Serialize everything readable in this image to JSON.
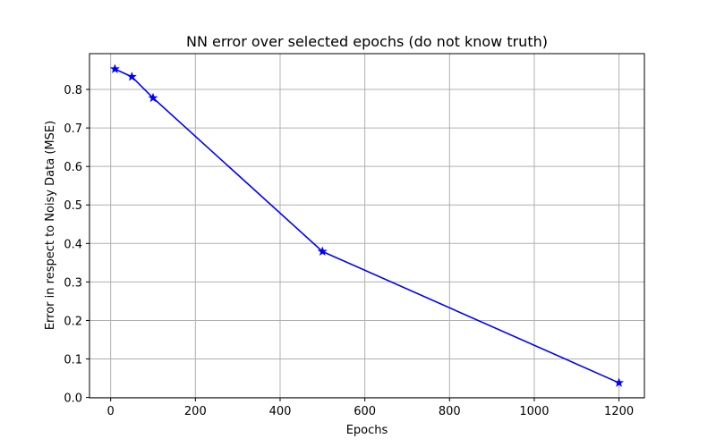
{
  "chart_data": {
    "type": "line",
    "title": "NN error over selected epochs (do not know truth)",
    "xlabel": "Epochs",
    "ylabel": "Error in respect to Noisy Data (MSE)",
    "x": [
      10,
      50,
      100,
      500,
      1200
    ],
    "series": [
      {
        "values": [
          0.853,
          0.833,
          0.778,
          0.379,
          0.038
        ],
        "color": "#0000ff",
        "marker": "star"
      }
    ],
    "xlim": [
      -50,
      1260
    ],
    "ylim": [
      -0.001,
      0.893
    ],
    "xticks": [
      0,
      200,
      400,
      600,
      800,
      1000,
      1200
    ],
    "yticks": [
      0.0,
      0.1,
      0.2,
      0.3,
      0.4,
      0.5,
      0.6,
      0.7,
      0.8
    ],
    "ytick_labels": [
      "0.0",
      "0.1",
      "0.2",
      "0.3",
      "0.4",
      "0.5",
      "0.6",
      "0.7",
      "0.8"
    ],
    "grid": true,
    "grid_color": "#b0b0b0",
    "legend": false
  }
}
